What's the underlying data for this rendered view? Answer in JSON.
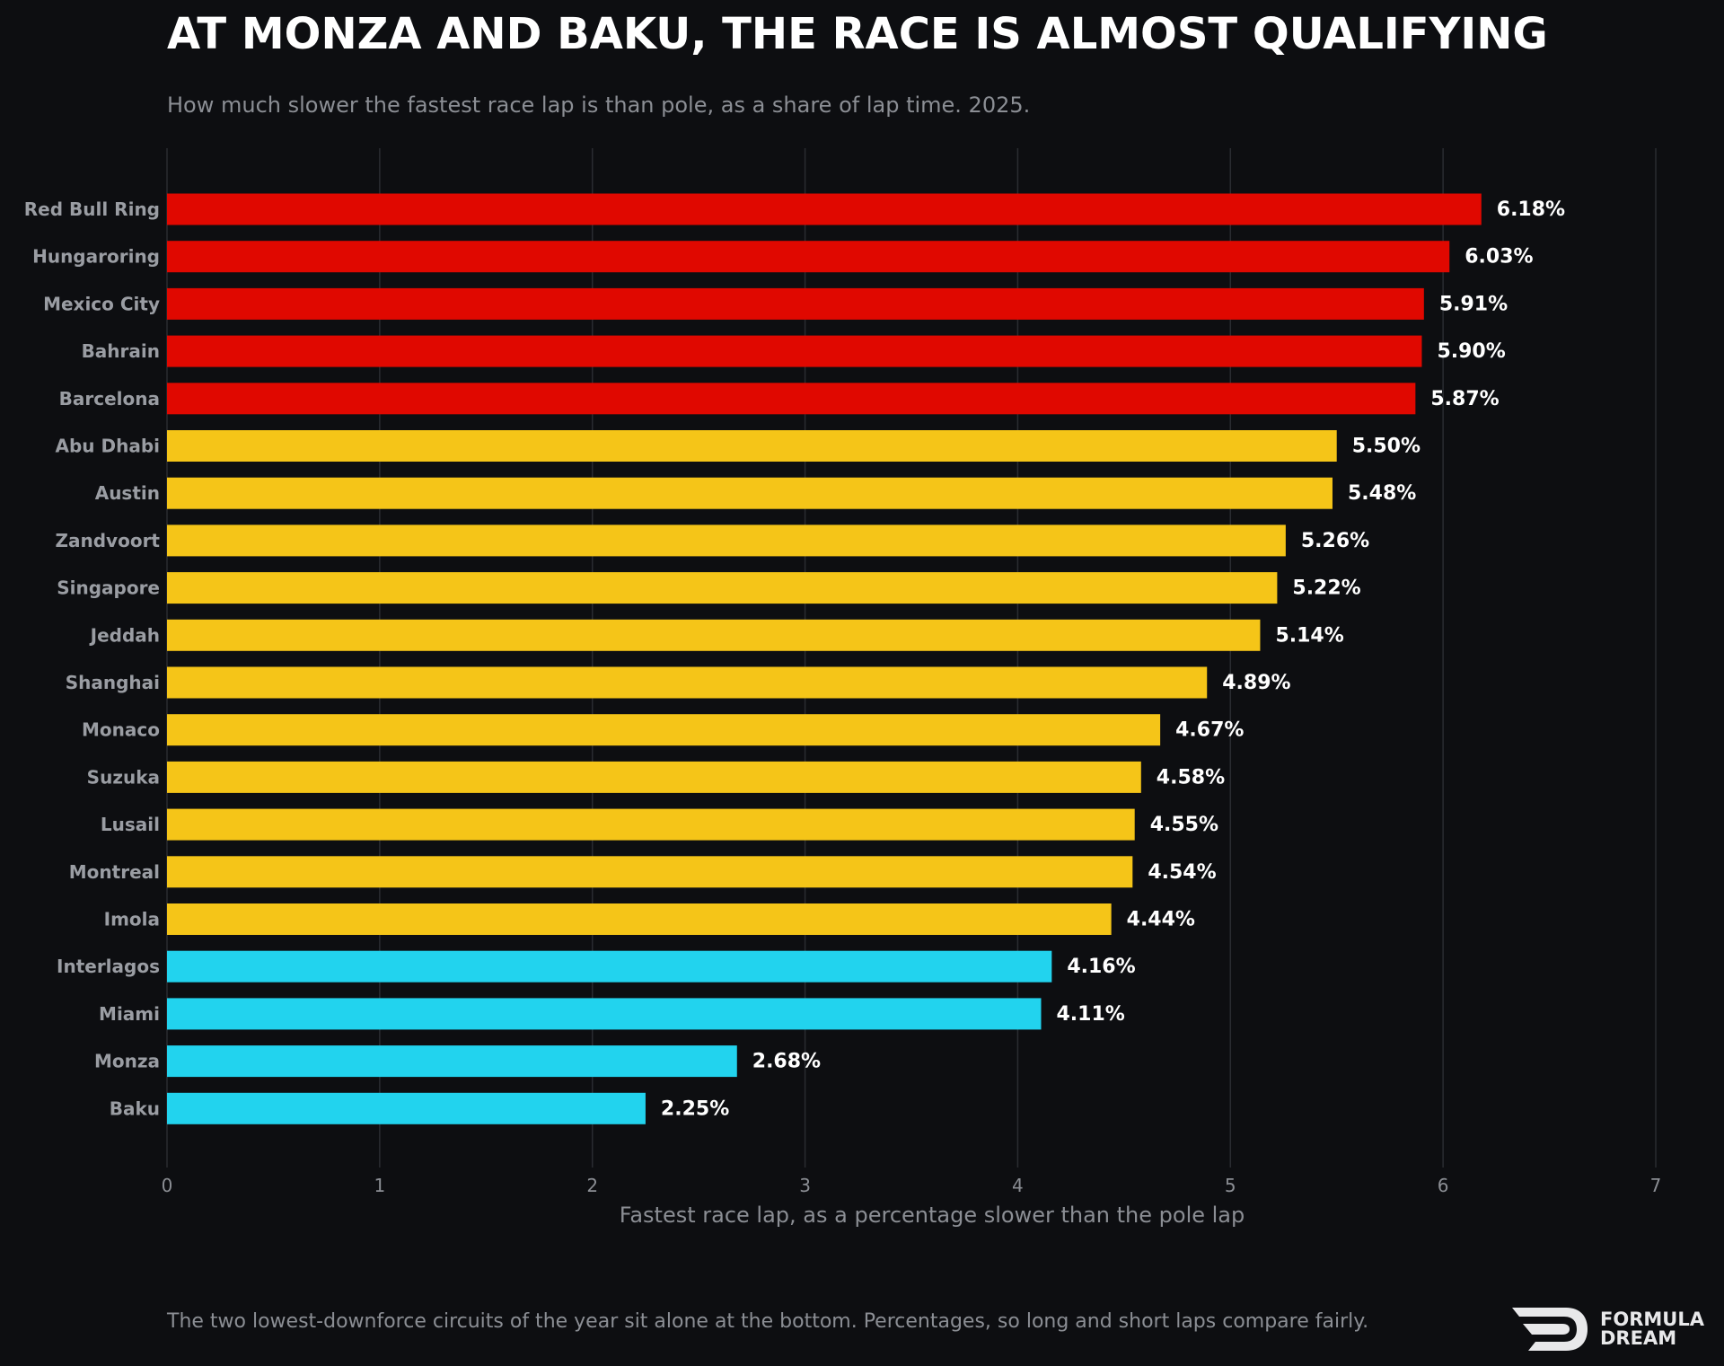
{
  "header": {
    "title": "AT MONZA AND BAKU, THE RACE IS ALMOST QUALIFYING",
    "subtitle": "How much slower the fastest race lap is than pole, as a share of lap time. 2025."
  },
  "footer": {
    "note": "The two lowest-downforce circuits of the year sit alone at the bottom. Percentages, so long and short laps compare fairly.",
    "logo_line1": "FORMULA",
    "logo_line2": "DREAM",
    "logo_icon": "formula-dream-logo-icon"
  },
  "colors": {
    "background": "#0d0e11",
    "high": "#e00800",
    "mid": "#f5c518",
    "low": "#22d3ee",
    "grid": "#2a2c31",
    "tick_text": "#8b8e94",
    "category_text": "#9a9da3",
    "value_text": "#ffffff"
  },
  "chart_data": {
    "type": "bar",
    "orientation": "horizontal",
    "title": "AT MONZA AND BAKU, THE RACE IS ALMOST QUALIFYING",
    "subtitle": "How much slower the fastest race lap is than pole, as a share of lap time. 2025.",
    "xlabel": "Fastest race lap, as a percentage slower than the pole lap",
    "ylabel": "",
    "xlim": [
      0,
      7
    ],
    "xticks": [
      0,
      1,
      2,
      3,
      4,
      5,
      6,
      7
    ],
    "grid": "vertical",
    "legend": "none",
    "value_suffix": "%",
    "categories": [
      "Red Bull Ring",
      "Hungaroring",
      "Mexico City",
      "Bahrain",
      "Barcelona",
      "Abu Dhabi",
      "Austin",
      "Zandvoort",
      "Singapore",
      "Jeddah",
      "Shanghai",
      "Monaco",
      "Suzuka",
      "Lusail",
      "Montreal",
      "Imola",
      "Interlagos",
      "Miami",
      "Monza",
      "Baku"
    ],
    "values": [
      6.18,
      6.03,
      5.91,
      5.9,
      5.87,
      5.5,
      5.48,
      5.26,
      5.22,
      5.14,
      4.89,
      4.67,
      4.58,
      4.55,
      4.54,
      4.44,
      4.16,
      4.11,
      2.68,
      2.25
    ],
    "value_labels": [
      "6.18%",
      "6.03%",
      "5.91%",
      "5.90%",
      "5.87%",
      "5.50%",
      "5.48%",
      "5.26%",
      "5.22%",
      "5.14%",
      "4.89%",
      "4.67%",
      "4.58%",
      "4.55%",
      "4.54%",
      "4.44%",
      "4.16%",
      "4.11%",
      "2.68%",
      "2.25%"
    ],
    "color_groups": [
      "high",
      "high",
      "high",
      "high",
      "high",
      "mid",
      "mid",
      "mid",
      "mid",
      "mid",
      "mid",
      "mid",
      "mid",
      "mid",
      "mid",
      "mid",
      "low",
      "low",
      "low",
      "low"
    ]
  }
}
